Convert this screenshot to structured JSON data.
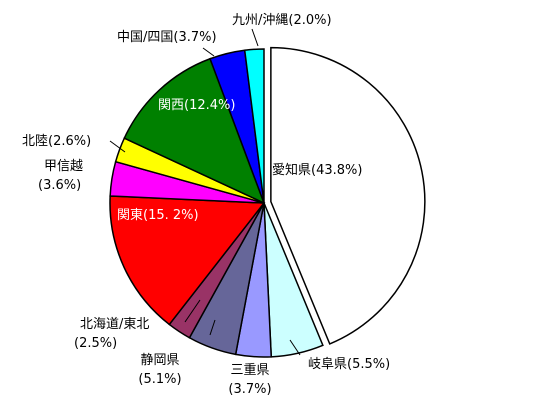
{
  "chart_data": {
    "type": "pie",
    "categories": [
      "愛知県",
      "岐阜県",
      "三重県",
      "静岡県",
      "北海道/東北",
      "関東",
      "甲信越",
      "北陸",
      "関西",
      "中国/四国",
      "九州/沖縄"
    ],
    "values": [
      43.8,
      5.5,
      3.7,
      5.1,
      2.5,
      15.2,
      3.6,
      2.6,
      12.4,
      3.7,
      2.0
    ],
    "value_labels": [
      "(43.8%)",
      "(5.5%)",
      "(3.7%)",
      "(5.1%)",
      "(2.5%)",
      "(15. 2%)",
      "(3.6%)",
      "(2.6%)",
      "(12.4%)",
      "(3.7%)",
      "(2.0%)"
    ],
    "colors": [
      "#ffffff",
      "#ccffff",
      "#9999ff",
      "#666699",
      "#993366",
      "#ff0000",
      "#ff00ff",
      "#ffff00",
      "#008000",
      "#0000ff",
      "#00ffff"
    ]
  }
}
